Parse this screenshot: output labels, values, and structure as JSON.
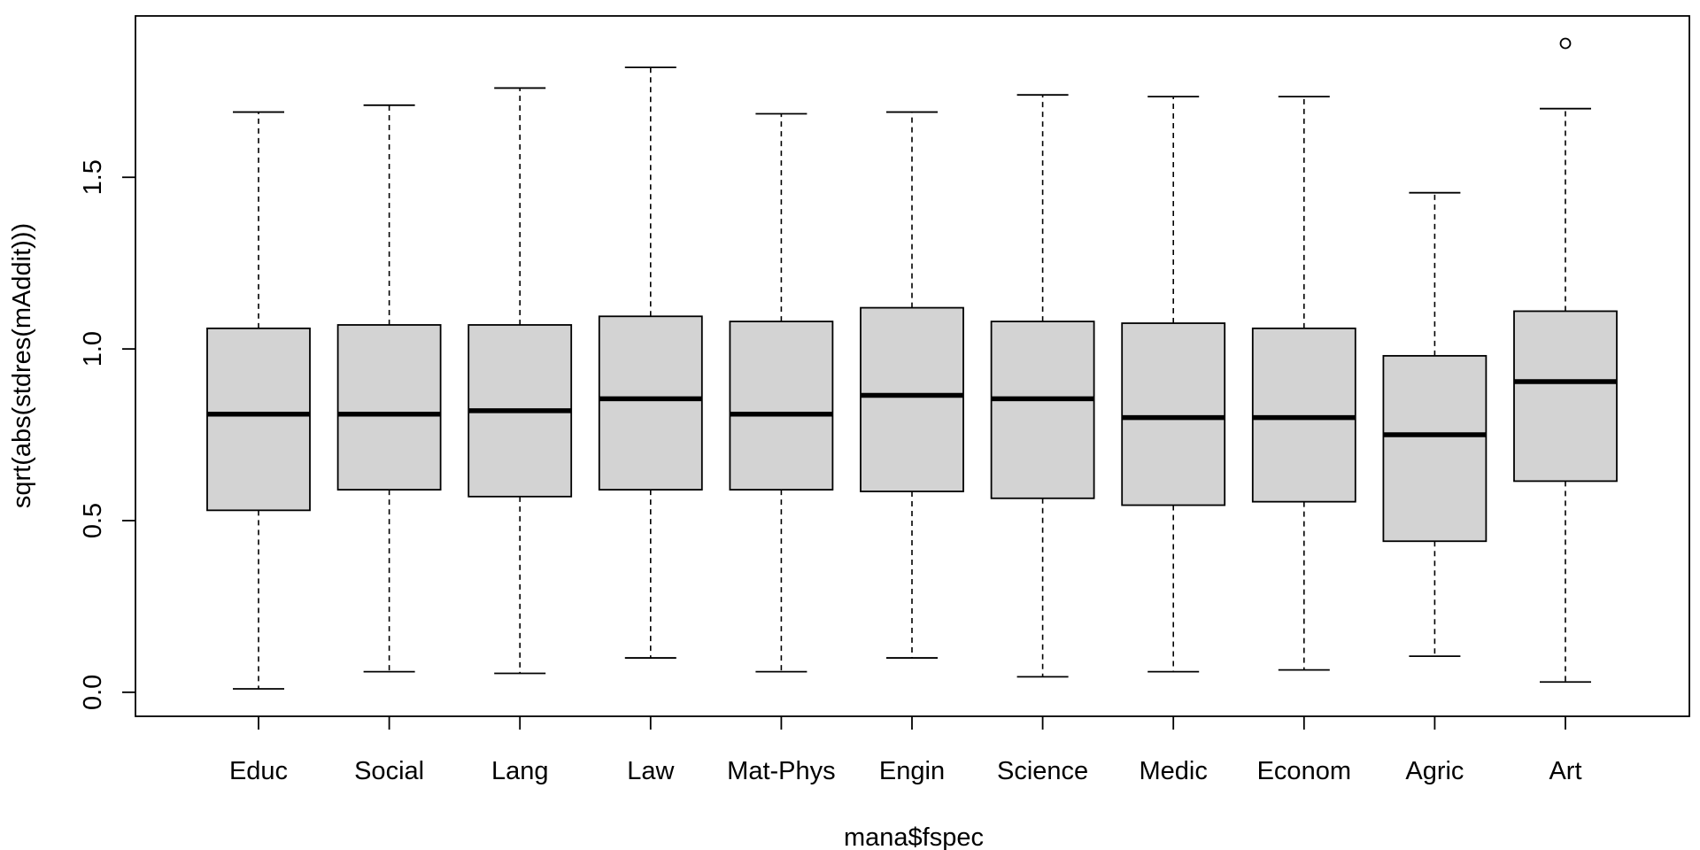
{
  "chart_data": {
    "type": "box",
    "xlabel": "mana$fspec",
    "ylabel": "sqrt(abs(stdres(mAddit)))",
    "ylim": [
      -0.07,
      1.97
    ],
    "yticks": [
      0.0,
      0.5,
      1.0,
      1.5
    ],
    "ytick_labels": [
      "0.0",
      "0.5",
      "1.0",
      "1.5"
    ],
    "box_fill": "#d3d3d3",
    "categories": [
      "Educ",
      "Social",
      "Lang",
      "Law",
      "Mat-Phys",
      "Engin",
      "Science",
      "Medic",
      "Econom",
      "Agric",
      "Art"
    ],
    "boxes": [
      {
        "min": 0.01,
        "q1": 0.53,
        "median": 0.81,
        "q3": 1.06,
        "max": 1.69,
        "outliers": []
      },
      {
        "min": 0.06,
        "q1": 0.59,
        "median": 0.81,
        "q3": 1.07,
        "max": 1.71,
        "outliers": []
      },
      {
        "min": 0.055,
        "q1": 0.57,
        "median": 0.82,
        "q3": 1.07,
        "max": 1.76,
        "outliers": []
      },
      {
        "min": 0.1,
        "q1": 0.59,
        "median": 0.855,
        "q3": 1.095,
        "max": 1.82,
        "outliers": []
      },
      {
        "min": 0.06,
        "q1": 0.59,
        "median": 0.81,
        "q3": 1.08,
        "max": 1.685,
        "outliers": []
      },
      {
        "min": 0.1,
        "q1": 0.585,
        "median": 0.865,
        "q3": 1.12,
        "max": 1.69,
        "outliers": []
      },
      {
        "min": 0.045,
        "q1": 0.565,
        "median": 0.855,
        "q3": 1.08,
        "max": 1.74,
        "outliers": []
      },
      {
        "min": 0.06,
        "q1": 0.545,
        "median": 0.8,
        "q3": 1.075,
        "max": 1.735,
        "outliers": []
      },
      {
        "min": 0.065,
        "q1": 0.555,
        "median": 0.8,
        "q3": 1.06,
        "max": 1.735,
        "outliers": []
      },
      {
        "min": 0.105,
        "q1": 0.44,
        "median": 0.75,
        "q3": 0.98,
        "max": 1.455,
        "outliers": []
      },
      {
        "min": 0.03,
        "q1": 0.615,
        "median": 0.905,
        "q3": 1.11,
        "max": 1.7,
        "outliers": [
          1.89
        ]
      }
    ]
  }
}
